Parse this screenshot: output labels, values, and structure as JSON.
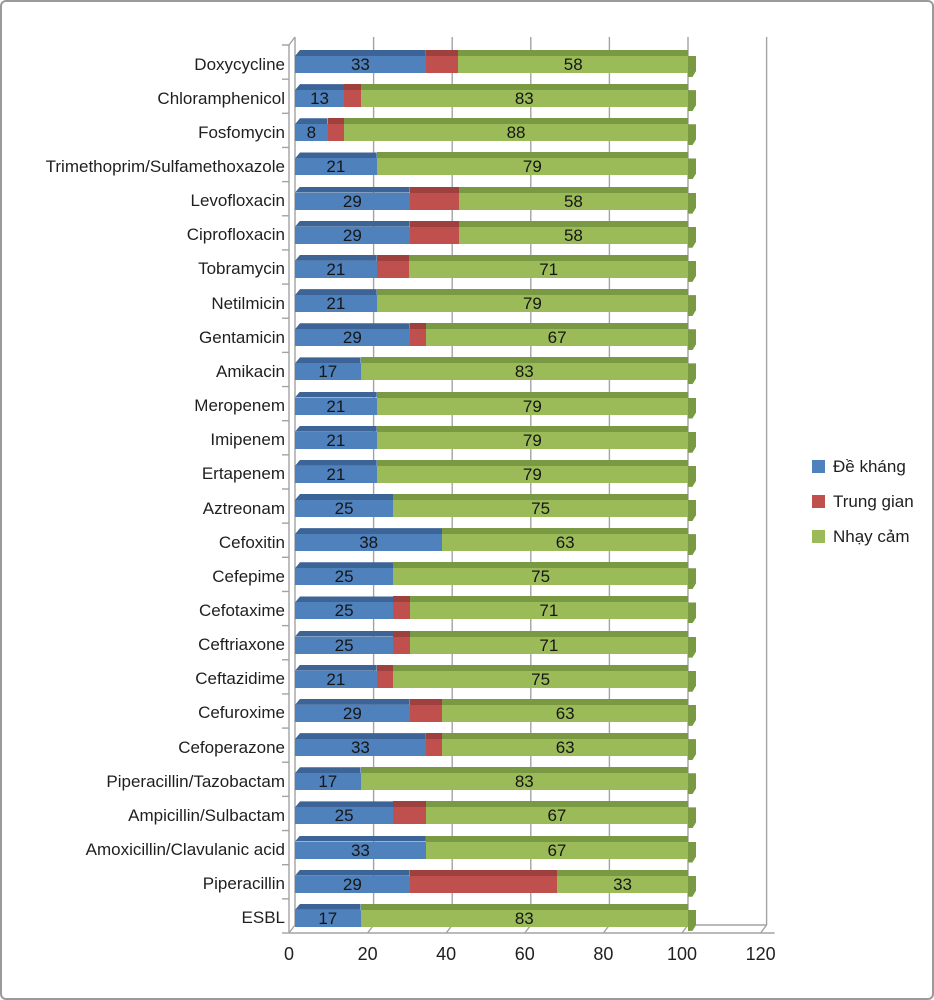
{
  "frame": {
    "background": "#ffffff",
    "border_color": "#9a9a9a"
  },
  "legend": {
    "position": "right",
    "items": [
      {
        "label": "Đề kháng",
        "color": "#4F81BD"
      },
      {
        "label": "Trung gian",
        "color": "#C0504D"
      },
      {
        "label": "Nhạy cảm",
        "color": "#9BBB59"
      }
    ]
  },
  "chart_data": {
    "type": "bar",
    "orientation": "horizontal",
    "stacked": true,
    "style": "3d-excel",
    "title": "",
    "xlabel": "",
    "ylabel": "",
    "xlim": [
      0,
      120
    ],
    "x_ticks": [
      0,
      20,
      40,
      60,
      80,
      100,
      120
    ],
    "grid": true,
    "axis_color": "#a3a3a3",
    "legend_position": "right",
    "categories": [
      "Doxycycline",
      "Chloramphenicol",
      "Fosfomycin",
      "Trimethoprim/Sulfamethoxazole",
      "Levofloxacin",
      "Ciprofloxacin",
      "Tobramycin",
      "Netilmicin",
      "Gentamicin",
      "Amikacin",
      "Meropenem",
      "Imipenem",
      "Ertapenem",
      "Aztreonam",
      "Cefoxitin",
      "Cefepime",
      "Cefotaxime",
      "Ceftriaxone",
      "Ceftazidime",
      "Cefuroxime",
      "Cefoperazone",
      "Piperacillin/Tazobactam",
      "Ampicillin/Sulbactam",
      "Amoxicillin/Clavulanic acid",
      "Piperacillin",
      "ESBL"
    ],
    "series": [
      {
        "name": "Đề kháng",
        "color": "#4F81BD",
        "dark_color": "#3D6497",
        "labels_visible": true,
        "values": [
          33,
          13,
          8,
          21,
          29,
          29,
          21,
          21,
          29,
          17,
          21,
          21,
          21,
          25,
          38,
          25,
          25,
          25,
          21,
          29,
          33,
          17,
          25,
          33,
          29,
          17
        ],
        "widths_pct": [
          33.3,
          12.5,
          8.3,
          20.8,
          29.2,
          29.2,
          20.8,
          20.8,
          29.2,
          16.7,
          20.8,
          20.8,
          20.8,
          25,
          37.5,
          25,
          25,
          25,
          20.8,
          29.2,
          33.3,
          16.7,
          25,
          33.3,
          29.2,
          16.7
        ]
      },
      {
        "name": "Trung gian",
        "color": "#C0504D",
        "dark_color": "#9E403D",
        "labels_visible": false,
        "values": [
          8,
          4,
          4,
          0,
          13,
          13,
          8,
          0,
          4,
          0,
          0,
          0,
          0,
          0,
          0,
          0,
          4,
          4,
          4,
          8,
          4,
          0,
          8,
          0,
          38,
          0
        ],
        "widths_pct": [
          8.3,
          4.2,
          4.2,
          0,
          12.5,
          12.5,
          8.3,
          0,
          4.2,
          0,
          0,
          0,
          0,
          0,
          0,
          0,
          4.2,
          4.2,
          4.2,
          8.3,
          4.2,
          0,
          8.3,
          0,
          37.5,
          0
        ]
      },
      {
        "name": "Nhạy cảm",
        "color": "#9BBB59",
        "dark_color": "#7A9943",
        "labels_visible": true,
        "values": [
          58,
          83,
          88,
          79,
          58,
          58,
          71,
          79,
          67,
          83,
          79,
          79,
          79,
          75,
          63,
          75,
          71,
          71,
          75,
          63,
          63,
          83,
          67,
          67,
          33,
          83
        ],
        "widths_pct": [
          58.4,
          83.3,
          87.5,
          79.2,
          58.3,
          58.3,
          70.9,
          79.2,
          66.6,
          83.3,
          79.2,
          79.2,
          79.2,
          75,
          62.5,
          75,
          70.8,
          70.8,
          75,
          62.5,
          62.5,
          83.3,
          66.7,
          66.7,
          33.3,
          83.3
        ]
      }
    ]
  }
}
